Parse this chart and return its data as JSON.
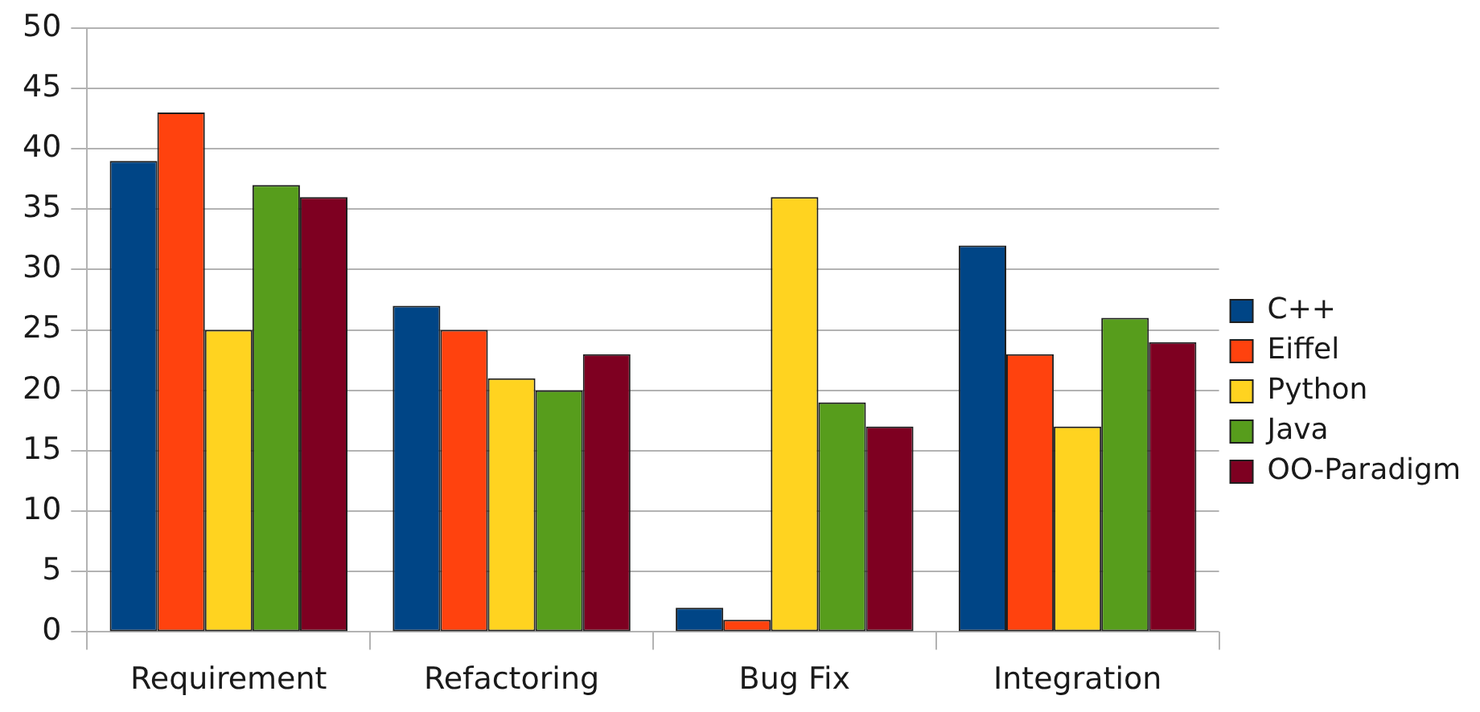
{
  "chart_data": {
    "type": "bar",
    "categories": [
      "Requirement",
      "Refactoring",
      "Bug Fix",
      "Integration"
    ],
    "series": [
      {
        "name": "C++",
        "color": "#004586",
        "values": [
          39,
          27,
          2,
          32
        ]
      },
      {
        "name": "Eiffel",
        "color": "#ff420e",
        "values": [
          43,
          25,
          1,
          23
        ]
      },
      {
        "name": "Python",
        "color": "#ffd320",
        "values": [
          25,
          21,
          36,
          17
        ]
      },
      {
        "name": "Java",
        "color": "#579d1c",
        "values": [
          37,
          20,
          19,
          26
        ]
      },
      {
        "name": "OO-Paradigm",
        "color": "#7e0021",
        "values": [
          36,
          23,
          17,
          24
        ]
      }
    ],
    "ylim": [
      0,
      50
    ],
    "yticks": [
      0,
      5,
      10,
      15,
      20,
      25,
      30,
      35,
      40,
      45,
      50
    ],
    "grid": "y",
    "legend": "right"
  }
}
